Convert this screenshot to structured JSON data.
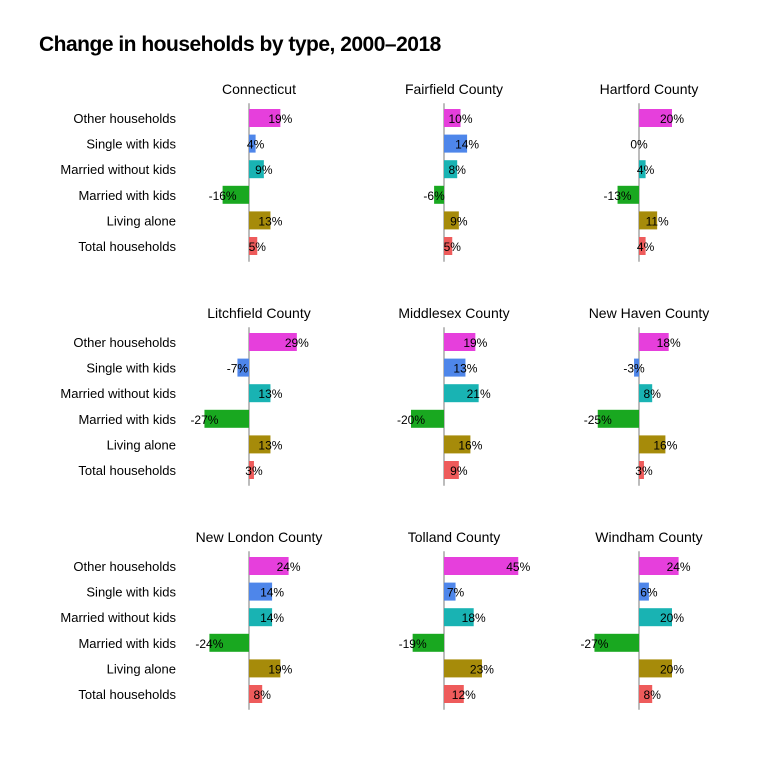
{
  "chart_data": {
    "type": "bar",
    "orientation": "horizontal",
    "title": "Change in households by type, 2000–2018",
    "categories": [
      "Other households",
      "Single with kids",
      "Married without kids",
      "Married with kids",
      "Living alone",
      "Total households"
    ],
    "category_colors": [
      "#e63fdc",
      "#4e86ea",
      "#19b3b3",
      "#19a820",
      "#a68b0a",
      "#ee5b5b"
    ],
    "value_format": "percent",
    "facets": [
      {
        "name": "Connecticut",
        "values": [
          19,
          4,
          9,
          -16,
          13,
          5
        ]
      },
      {
        "name": "Fairfield County",
        "values": [
          10,
          14,
          8,
          -6,
          9,
          5
        ]
      },
      {
        "name": "Hartford County",
        "values": [
          20,
          0,
          4,
          -13,
          11,
          4
        ]
      },
      {
        "name": "Litchfield County",
        "values": [
          29,
          -7,
          13,
          -27,
          13,
          3
        ]
      },
      {
        "name": "Middlesex County",
        "values": [
          19,
          13,
          21,
          -20,
          16,
          9
        ]
      },
      {
        "name": "New Haven County",
        "values": [
          18,
          -3,
          8,
          -25,
          16,
          3
        ]
      },
      {
        "name": "New London County",
        "values": [
          24,
          14,
          14,
          -24,
          19,
          8
        ]
      },
      {
        "name": "Tolland County",
        "values": [
          45,
          7,
          18,
          -19,
          23,
          12
        ]
      },
      {
        "name": "Windham County",
        "values": [
          24,
          6,
          20,
          -27,
          20,
          8
        ]
      }
    ],
    "legend": "none",
    "grid": false
  }
}
